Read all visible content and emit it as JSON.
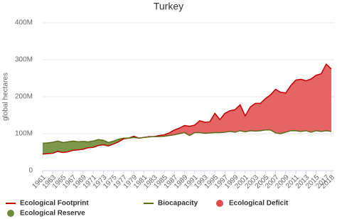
{
  "chart_data": {
    "type": "area-comparison",
    "title": "Turkey",
    "y_label": "global hectares",
    "x": [
      1961,
      1962,
      1963,
      1964,
      1965,
      1966,
      1967,
      1968,
      1969,
      1970,
      1971,
      1972,
      1973,
      1974,
      1975,
      1976,
      1977,
      1978,
      1979,
      1980,
      1981,
      1982,
      1983,
      1984,
      1985,
      1986,
      1987,
      1988,
      1989,
      1990,
      1991,
      1992,
      1993,
      1994,
      1995,
      1996,
      1997,
      1998,
      1999,
      2000,
      2001,
      2002,
      2003,
      2004,
      2005,
      2006,
      2007,
      2008,
      2009,
      2010,
      2011,
      2012,
      2013,
      2014,
      2015,
      2016,
      2017,
      2018
    ],
    "series": [
      {
        "name": "Ecological Footprint",
        "color": "#c00000",
        "values": [
          45000000,
          46000000,
          47000000,
          52000000,
          49000000,
          51000000,
          55000000,
          56000000,
          58000000,
          62000000,
          63000000,
          68000000,
          70000000,
          67000000,
          72000000,
          78000000,
          86000000,
          88000000,
          93000000,
          88000000,
          90000000,
          92000000,
          92000000,
          95000000,
          97000000,
          102000000,
          110000000,
          115000000,
          122000000,
          120000000,
          123000000,
          135000000,
          131000000,
          132000000,
          155000000,
          138000000,
          155000000,
          162000000,
          165000000,
          178000000,
          148000000,
          172000000,
          182000000,
          182000000,
          195000000,
          205000000,
          220000000,
          212000000,
          210000000,
          230000000,
          245000000,
          247000000,
          243000000,
          248000000,
          258000000,
          262000000,
          288000000,
          275000000
        ]
      },
      {
        "name": "Biocapacity",
        "color": "#5a6b1a",
        "values": [
          74000000,
          75000000,
          77000000,
          80000000,
          76000000,
          78000000,
          80000000,
          78000000,
          79000000,
          78000000,
          80000000,
          84000000,
          82000000,
          76000000,
          80000000,
          85000000,
          88000000,
          88000000,
          90000000,
          88000000,
          90000000,
          91000000,
          92000000,
          92000000,
          93000000,
          95000000,
          97000000,
          100000000,
          103000000,
          95000000,
          103000000,
          103000000,
          101000000,
          102000000,
          103000000,
          103000000,
          104000000,
          106000000,
          104000000,
          108000000,
          105000000,
          108000000,
          107000000,
          108000000,
          110000000,
          110000000,
          102000000,
          100000000,
          104000000,
          108000000,
          108000000,
          106000000,
          108000000,
          104000000,
          108000000,
          106000000,
          108000000,
          106000000
        ]
      }
    ],
    "fills": [
      {
        "name": "Ecological Deficit",
        "color": "#e04a4a"
      },
      {
        "name": "Ecological Reserve",
        "color": "#6f8c3a"
      }
    ],
    "ylim": [
      0,
      400000000
    ],
    "yticks": [
      {
        "value": 0,
        "label": "0"
      },
      {
        "value": 100000000,
        "label": "100M"
      },
      {
        "value": 200000000,
        "label": "200M"
      },
      {
        "value": 300000000,
        "label": "300M"
      },
      {
        "value": 400000000,
        "label": "400M"
      }
    ],
    "xlim": [
      1961,
      2018
    ],
    "xticks": [
      1961,
      1963,
      1965,
      1967,
      1969,
      1971,
      1973,
      1975,
      1977,
      1979,
      1981,
      1983,
      1985,
      1987,
      1989,
      1991,
      1993,
      1995,
      1997,
      1999,
      2001,
      2003,
      2005,
      2007,
      2009,
      2011,
      2013,
      2015,
      2017,
      2018
    ],
    "grid": true
  }
}
